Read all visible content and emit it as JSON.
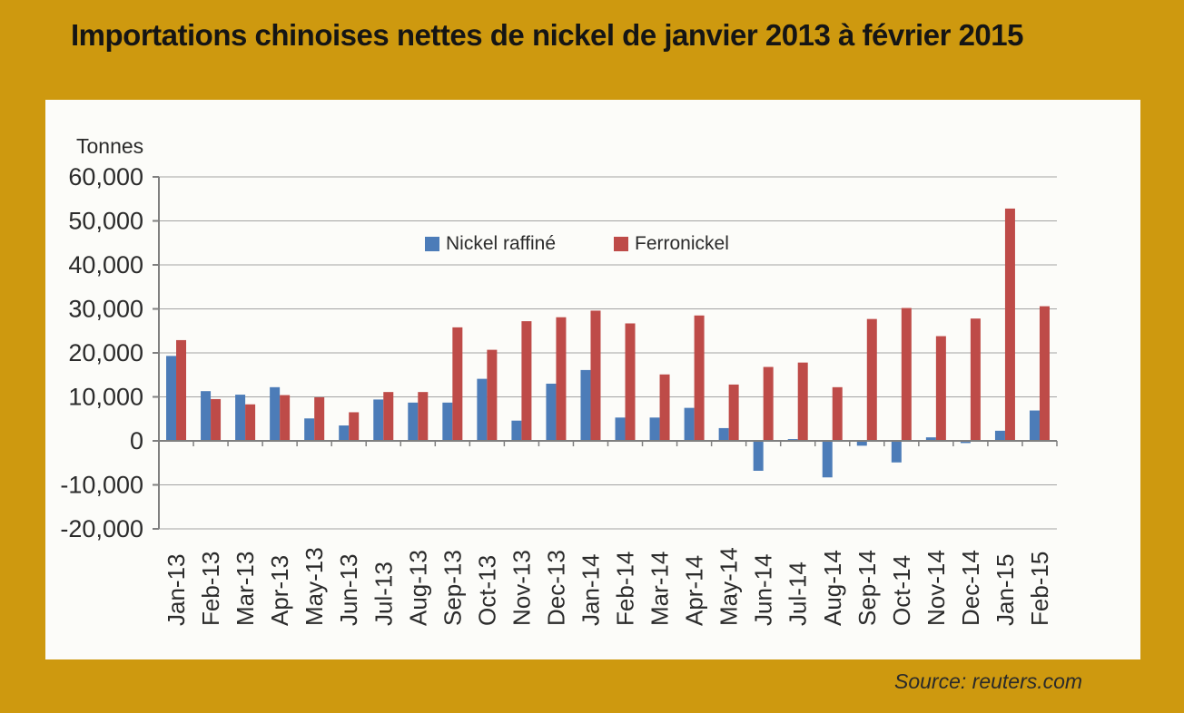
{
  "title": "Importations chinoises nettes de nickel de janvier 2013 à février 2015",
  "source": "Source: reuters.com",
  "colors": {
    "background": "#CE990F",
    "panel": "#FCFCF9",
    "nickel_blue": "#4C7CB8",
    "ferro_red": "#BE4B48",
    "gridline": "#A3A3A3",
    "axis": "#7F7F7F",
    "axis_text": "#2B2B2B",
    "title_text": "#151515"
  },
  "chart_data": {
    "type": "bar",
    "title": "Importations chinoises nettes de nickel de janvier 2013 à février 2015",
    "unit_label": "Tonnes",
    "xlabel": "",
    "ylabel": "Tonnes",
    "ylim": [
      -20000,
      60000
    ],
    "y_tick_step": 10000,
    "y_tick_labels": [
      "60,000",
      "50,000",
      "40,000",
      "30,000",
      "20,000",
      "10,000",
      "0",
      "-10,000",
      "-20,000"
    ],
    "grid": true,
    "legend_position": "inside-top-center",
    "categories": [
      "Jan-13",
      "Feb-13",
      "Mar-13",
      "Apr-13",
      "May-13",
      "Jun-13",
      "Jul-13",
      "Aug-13",
      "Sep-13",
      "Oct-13",
      "Nov-13",
      "Dec-13",
      "Jan-14",
      "Feb-14",
      "Mar-14",
      "Apr-14",
      "May-14",
      "Jun-14",
      "Jul-14",
      "Aug-14",
      "Sep-14",
      "Oct-14",
      "Nov-14",
      "Dec-14",
      "Jan-15",
      "Feb-15"
    ],
    "series": [
      {
        "name": "Nickel raffiné",
        "color": "#4C7CB8",
        "values": [
          19300,
          11300,
          10500,
          12200,
          5100,
          3500,
          9400,
          8700,
          8700,
          14100,
          4600,
          13000,
          16100,
          5300,
          5300,
          7500,
          2900,
          -6800,
          400,
          -8300,
          -1100,
          -4900,
          800,
          -500,
          2300,
          6900
        ]
      },
      {
        "name": "Ferronickel",
        "color": "#BE4B48",
        "values": [
          22900,
          9500,
          8300,
          10400,
          9900,
          6500,
          11100,
          11100,
          25800,
          20700,
          27200,
          28100,
          29600,
          26700,
          15100,
          28500,
          12800,
          16800,
          17800,
          12200,
          27700,
          30200,
          23800,
          27800,
          52800,
          30600
        ]
      }
    ]
  }
}
